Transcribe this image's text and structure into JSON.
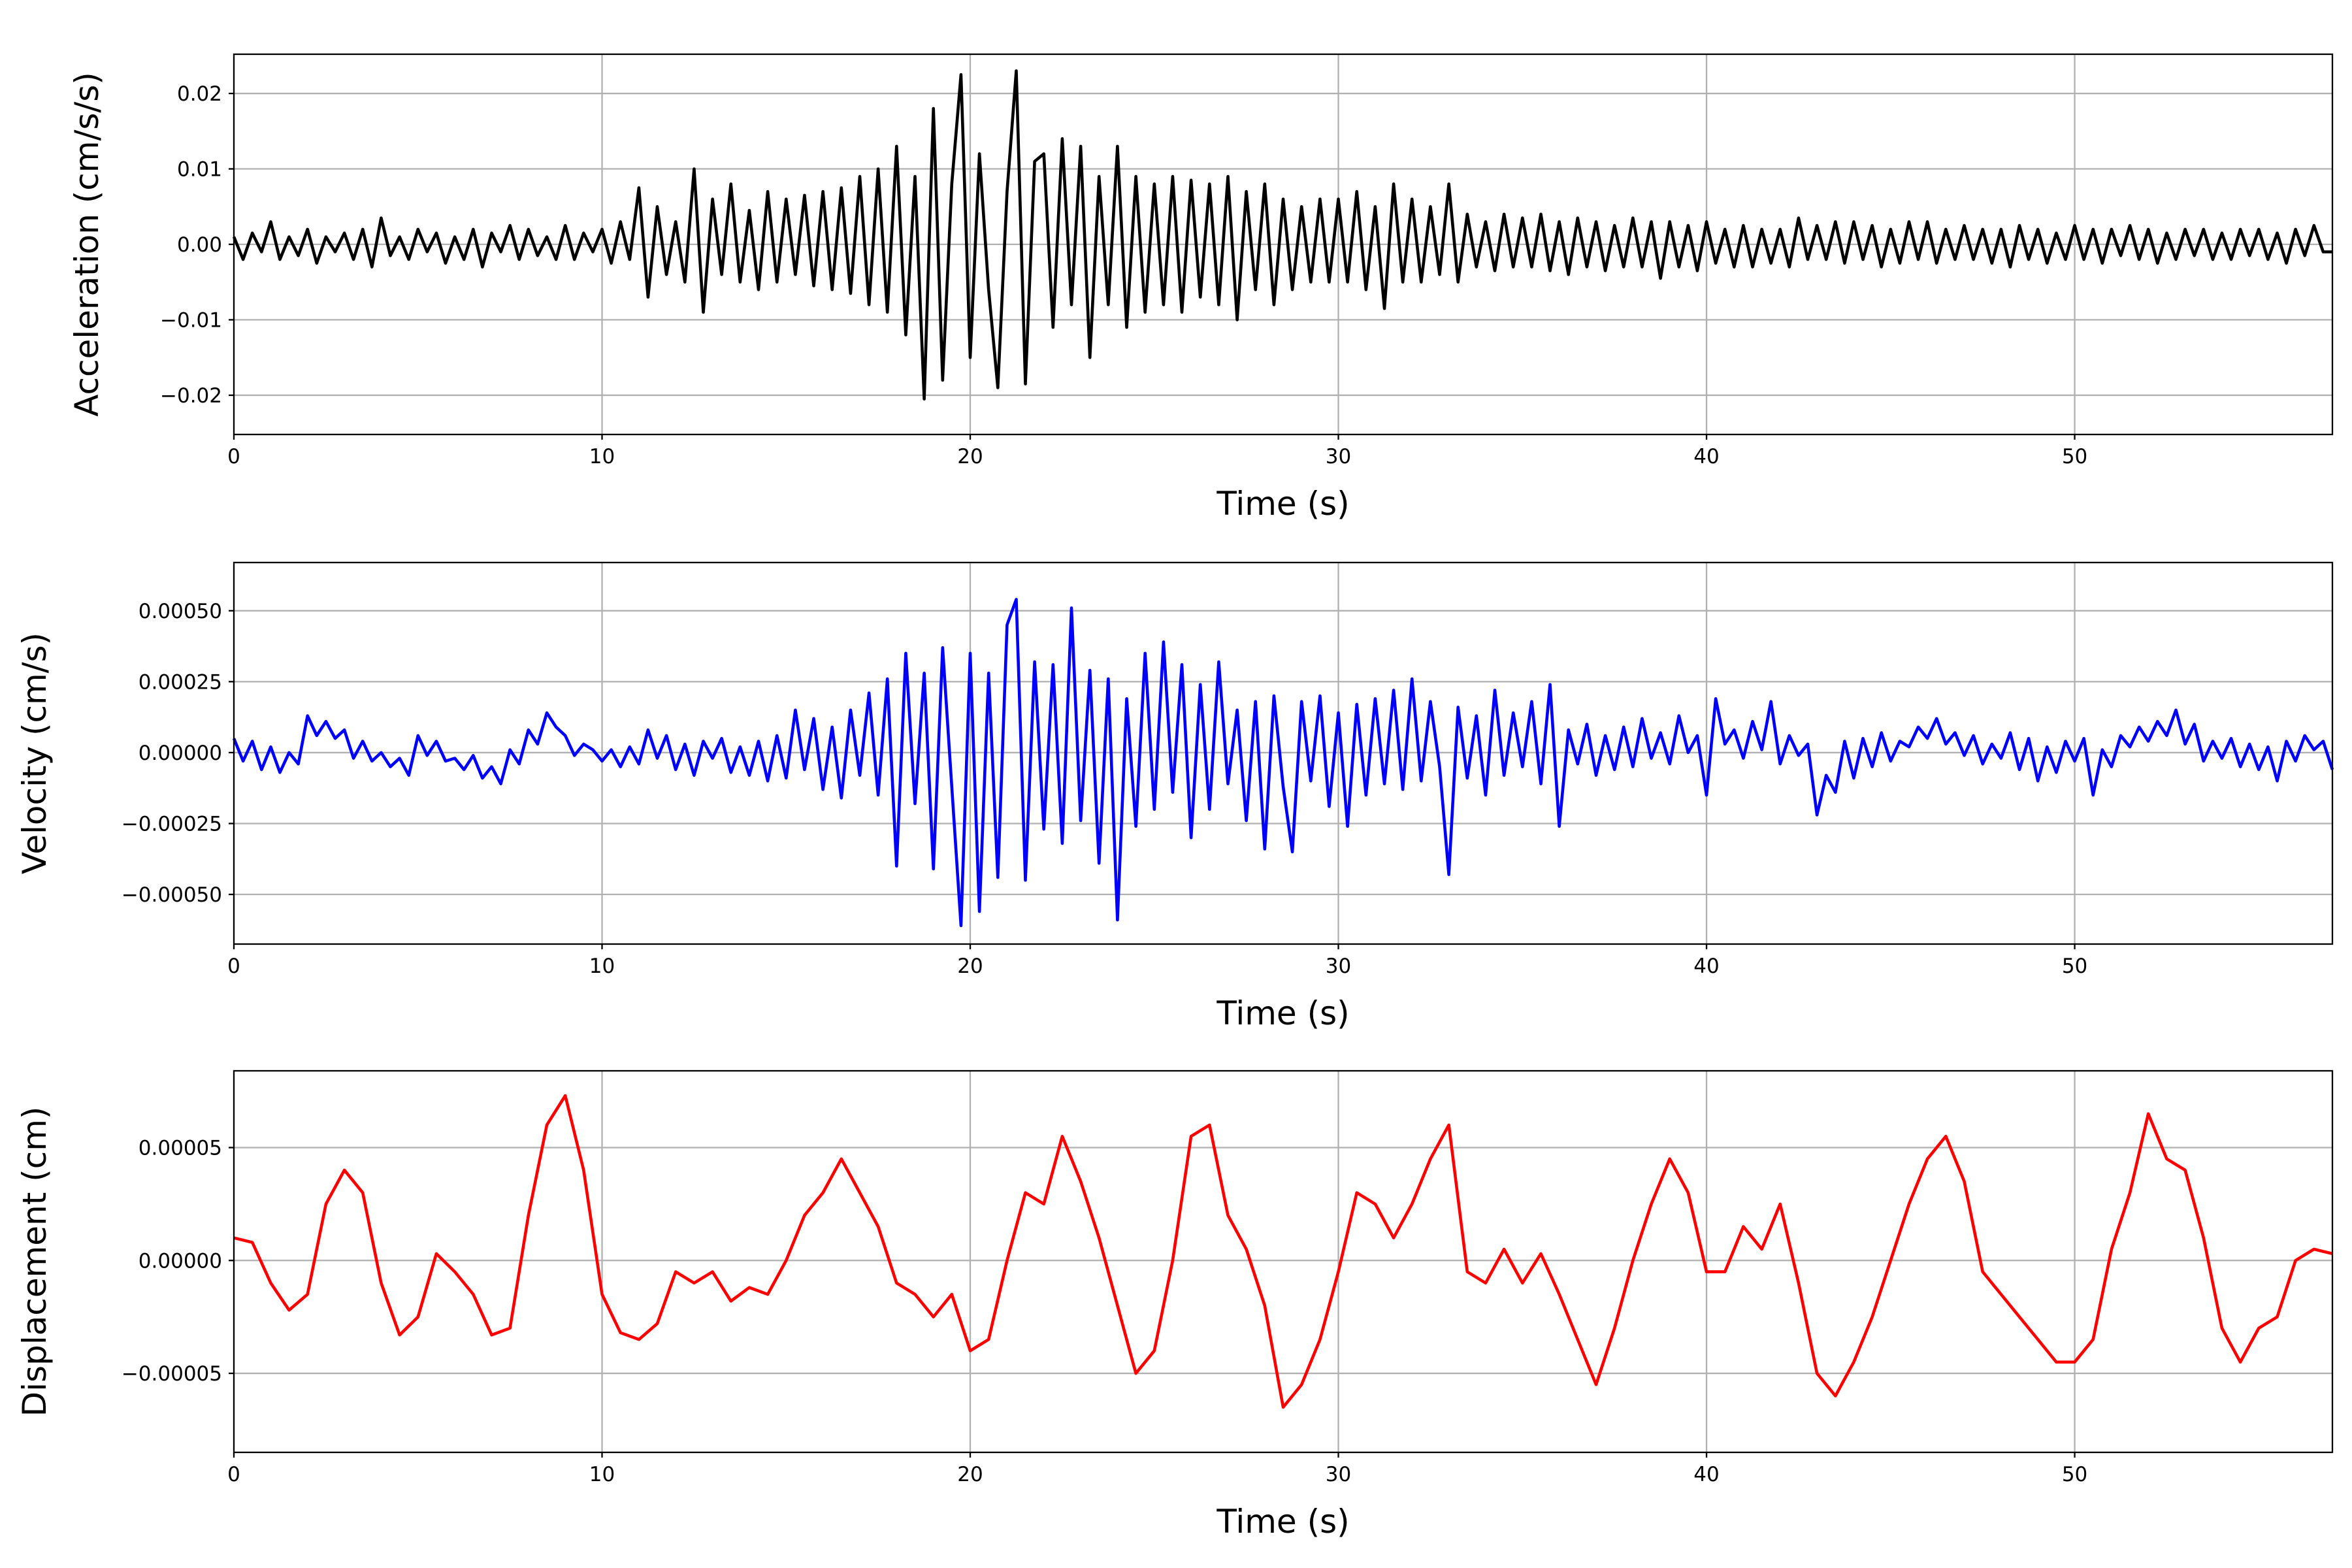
{
  "chart_data": [
    {
      "type": "line",
      "title": "",
      "xlabel": "Time (s)",
      "ylabel": "Acceleration (cm/s/s)",
      "color": "#000000",
      "xlim": [
        0,
        57
      ],
      "ylim": [
        -0.0252,
        0.0252
      ],
      "grid": true,
      "xticks": [
        {
          "v": 0,
          "label": "0"
        },
        {
          "v": 10,
          "label": "10"
        },
        {
          "v": 20,
          "label": "20"
        },
        {
          "v": 30,
          "label": "30"
        },
        {
          "v": 40,
          "label": "40"
        },
        {
          "v": 50,
          "label": "50"
        }
      ],
      "yticks": [
        {
          "v": 0.02,
          "label": "0.02"
        },
        {
          "v": 0.01,
          "label": "0.01"
        },
        {
          "v": 0,
          "label": "0.00"
        },
        {
          "v": -0.01,
          "label": "−0.01"
        },
        {
          "v": -0.02,
          "label": "−0.02"
        }
      ],
      "x_start": 0,
      "x_step": 0.25,
      "y_scale": 0.01,
      "y": [
        0.1,
        -0.2,
        0.15,
        -0.1,
        0.3,
        -0.2,
        0.1,
        -0.15,
        0.2,
        -0.25,
        0.1,
        -0.1,
        0.15,
        -0.2,
        0.2,
        -0.3,
        0.35,
        -0.15,
        0.1,
        -0.2,
        0.2,
        -0.1,
        0.15,
        -0.25,
        0.1,
        -0.2,
        0.2,
        -0.3,
        0.15,
        -0.1,
        0.25,
        -0.2,
        0.2,
        -0.15,
        0.1,
        -0.2,
        0.25,
        -0.2,
        0.15,
        -0.1,
        0.2,
        -0.25,
        0.3,
        -0.2,
        0.75,
        -0.7,
        0.5,
        -0.4,
        0.3,
        -0.5,
        1.0,
        -0.9,
        0.6,
        -0.4,
        0.8,
        -0.5,
        0.45,
        -0.6,
        0.7,
        -0.5,
        0.6,
        -0.4,
        0.65,
        -0.55,
        0.7,
        -0.6,
        0.75,
        -0.65,
        0.9,
        -0.8,
        1.0,
        -0.9,
        1.3,
        -1.2,
        0.9,
        -2.05,
        1.8,
        -1.8,
        0.8,
        2.25,
        -1.5,
        1.2,
        -0.6,
        -1.9,
        0.7,
        2.3,
        -1.85,
        1.1,
        1.2,
        -1.1,
        1.4,
        -0.8,
        1.3,
        -1.5,
        0.9,
        -0.8,
        1.3,
        -1.1,
        0.9,
        -0.9,
        0.8,
        -0.8,
        0.9,
        -0.9,
        0.85,
        -0.7,
        0.8,
        -0.8,
        0.9,
        -1.0,
        0.7,
        -0.6,
        0.8,
        -0.8,
        0.6,
        -0.6,
        0.5,
        -0.5,
        0.6,
        -0.5,
        0.6,
        -0.5,
        0.7,
        -0.6,
        0.5,
        -0.85,
        0.8,
        -0.5,
        0.6,
        -0.5,
        0.5,
        -0.4,
        0.8,
        -0.5,
        0.4,
        -0.3,
        0.3,
        -0.35,
        0.4,
        -0.3,
        0.35,
        -0.3,
        0.4,
        -0.35,
        0.3,
        -0.4,
        0.35,
        -0.3,
        0.3,
        -0.35,
        0.25,
        -0.3,
        0.35,
        -0.3,
        0.3,
        -0.45,
        0.3,
        -0.3,
        0.25,
        -0.35,
        0.3,
        -0.25,
        0.2,
        -0.3,
        0.25,
        -0.3,
        0.2,
        -0.25,
        0.2,
        -0.3,
        0.35,
        -0.2,
        0.25,
        -0.2,
        0.3,
        -0.25,
        0.3,
        -0.2,
        0.25,
        -0.3,
        0.2,
        -0.25,
        0.3,
        -0.2,
        0.3,
        -0.25,
        0.2,
        -0.2,
        0.25,
        -0.2,
        0.2,
        -0.25,
        0.2,
        -0.3,
        0.25,
        -0.2,
        0.2,
        -0.25,
        0.15,
        -0.2,
        0.25,
        -0.2,
        0.2,
        -0.25,
        0.2,
        -0.15,
        0.25,
        -0.2,
        0.2,
        -0.25,
        0.15,
        -0.2,
        0.2,
        -0.15,
        0.2,
        -0.2,
        0.15,
        -0.2,
        0.2,
        -0.15,
        0.2,
        -0.2,
        0.15,
        -0.25,
        0.2,
        -0.15,
        0.25,
        -0.1,
        -0.1
      ]
    },
    {
      "type": "line",
      "title": "",
      "xlabel": "Time (s)",
      "ylabel": "Velocity (cm/s)",
      "color": "#0000ff",
      "xlim": [
        0,
        57
      ],
      "ylim": [
        -0.000675,
        0.00067
      ],
      "grid": true,
      "xticks": [
        {
          "v": 0,
          "label": "0"
        },
        {
          "v": 10,
          "label": "10"
        },
        {
          "v": 20,
          "label": "20"
        },
        {
          "v": 30,
          "label": "30"
        },
        {
          "v": 40,
          "label": "40"
        },
        {
          "v": 50,
          "label": "50"
        }
      ],
      "yticks": [
        {
          "v": 0.0005,
          "label": "0.00050"
        },
        {
          "v": 0.00025,
          "label": "0.00025"
        },
        {
          "v": 0,
          "label": "0.00000"
        },
        {
          "v": -0.00025,
          "label": "−0.00025"
        },
        {
          "v": -0.0005,
          "label": "−0.00050"
        }
      ],
      "x_start": 0,
      "x_step": 0.25,
      "y_scale": 0.0001,
      "y": [
        0.5,
        -0.3,
        0.4,
        -0.6,
        0.2,
        -0.7,
        0.0,
        -0.4,
        1.3,
        0.6,
        1.1,
        0.5,
        0.8,
        -0.2,
        0.4,
        -0.3,
        0.0,
        -0.5,
        -0.2,
        -0.8,
        0.6,
        -0.1,
        0.4,
        -0.3,
        -0.2,
        -0.6,
        -0.1,
        -0.9,
        -0.5,
        -1.1,
        0.1,
        -0.4,
        0.8,
        0.3,
        1.4,
        0.9,
        0.6,
        -0.1,
        0.3,
        0.1,
        -0.3,
        0.1,
        -0.5,
        0.2,
        -0.4,
        0.8,
        -0.2,
        0.6,
        -0.6,
        0.3,
        -0.8,
        0.4,
        -0.2,
        0.5,
        -0.7,
        0.2,
        -0.8,
        0.4,
        -1.0,
        0.6,
        -0.9,
        1.5,
        -0.6,
        1.2,
        -1.3,
        0.9,
        -1.6,
        1.5,
        -0.8,
        2.1,
        -1.5,
        2.6,
        -4.0,
        3.5,
        -1.8,
        2.8,
        -4.1,
        3.7,
        -1.2,
        -6.1,
        3.5,
        -5.6,
        2.8,
        -4.4,
        4.5,
        5.4,
        -4.5,
        3.2,
        -2.7,
        3.1,
        -3.2,
        5.1,
        -2.4,
        2.9,
        -3.9,
        2.6,
        -5.9,
        1.9,
        -2.6,
        3.5,
        -2.0,
        3.9,
        -1.4,
        3.1,
        -3.0,
        2.4,
        -2.0,
        3.2,
        -1.1,
        1.5,
        -2.4,
        1.8,
        -3.4,
        2.0,
        -1.2,
        -3.5,
        1.8,
        -1.0,
        2.0,
        -1.9,
        1.4,
        -2.6,
        1.7,
        -1.5,
        1.9,
        -1.1,
        2.2,
        -1.3,
        2.6,
        -1.0,
        1.8,
        -0.5,
        -4.3,
        1.6,
        -0.9,
        1.3,
        -1.5,
        2.2,
        -0.8,
        1.4,
        -0.5,
        1.8,
        -1.1,
        2.4,
        -2.6,
        0.8,
        -0.4,
        1.0,
        -0.8,
        0.6,
        -0.6,
        0.9,
        -0.5,
        1.2,
        -0.2,
        0.7,
        -0.4,
        1.3,
        0.0,
        0.6,
        -1.5,
        1.9,
        0.3,
        0.8,
        -0.2,
        1.1,
        0.1,
        1.8,
        -0.4,
        0.6,
        -0.1,
        0.3,
        -2.2,
        -0.8,
        -1.4,
        0.4,
        -0.9,
        0.5,
        -0.5,
        0.7,
        -0.3,
        0.4,
        0.2,
        0.9,
        0.5,
        1.2,
        0.3,
        0.7,
        -0.1,
        0.6,
        -0.4,
        0.3,
        -0.2,
        0.7,
        -0.6,
        0.5,
        -1.0,
        0.2,
        -0.7,
        0.4,
        -0.3,
        0.5,
        -1.5,
        0.1,
        -0.5,
        0.6,
        0.2,
        0.9,
        0.4,
        1.1,
        0.6,
        1.5,
        0.3,
        1.0,
        -0.3,
        0.4,
        -0.2,
        0.5,
        -0.5,
        0.3,
        -0.6,
        0.2,
        -1.0,
        0.4,
        -0.3,
        0.6,
        0.1,
        0.4,
        -0.6
      ]
    },
    {
      "type": "line",
      "title": "",
      "xlabel": "Time (s)",
      "ylabel": "Displacement (cm)",
      "color": "#ff0000",
      "xlim": [
        0,
        57
      ],
      "ylim": [
        -8.5e-05,
        8.4e-05
      ],
      "grid": true,
      "xticks": [
        {
          "v": 0,
          "label": "0"
        },
        {
          "v": 10,
          "label": "10"
        },
        {
          "v": 20,
          "label": "20"
        },
        {
          "v": 30,
          "label": "30"
        },
        {
          "v": 40,
          "label": "40"
        },
        {
          "v": 50,
          "label": "50"
        }
      ],
      "yticks": [
        {
          "v": 5e-05,
          "label": "0.00005"
        },
        {
          "v": 0,
          "label": "0.00000"
        },
        {
          "v": -5e-05,
          "label": "−0.00005"
        }
      ],
      "x_start": 0,
      "x_step": 0.5,
      "y_scale": 1e-05,
      "y": [
        1.0,
        0.8,
        -1.0,
        -2.2,
        -1.5,
        2.5,
        4.0,
        3.0,
        -1.0,
        -3.3,
        -2.5,
        0.3,
        -0.5,
        -1.5,
        -3.3,
        -3.0,
        2.0,
        6.0,
        7.3,
        4.0,
        -1.5,
        -3.2,
        -3.5,
        -2.8,
        -0.5,
        -1.0,
        -0.5,
        -1.8,
        -1.2,
        -1.5,
        0.0,
        2.0,
        3.0,
        4.5,
        3.0,
        1.5,
        -1.0,
        -1.5,
        -2.5,
        -1.5,
        -4.0,
        -3.5,
        0.0,
        3.0,
        2.5,
        5.5,
        3.5,
        1.0,
        -2.0,
        -5.0,
        -4.0,
        0.0,
        5.5,
        6.0,
        2.0,
        0.5,
        -2.0,
        -6.5,
        -5.5,
        -3.5,
        -0.5,
        3.0,
        2.5,
        1.0,
        2.5,
        4.5,
        6.0,
        -0.5,
        -1.0,
        0.5,
        -1.0,
        0.3,
        -1.5,
        -3.5,
        -5.5,
        -3.0,
        0.0,
        2.5,
        4.5,
        3.0,
        -0.5,
        -0.5,
        1.5,
        0.5,
        2.5,
        -1.0,
        -5.0,
        -6.0,
        -4.5,
        -2.5,
        0.0,
        2.5,
        4.5,
        5.5,
        3.5,
        -0.5,
        -1.5,
        -2.5,
        -3.5,
        -4.5,
        -4.5,
        -3.5,
        0.5,
        3.0,
        6.5,
        4.5,
        4.0,
        1.0,
        -3.0,
        -4.5,
        -3.0,
        -2.5,
        0.0,
        0.5,
        0.3
      ]
    }
  ]
}
